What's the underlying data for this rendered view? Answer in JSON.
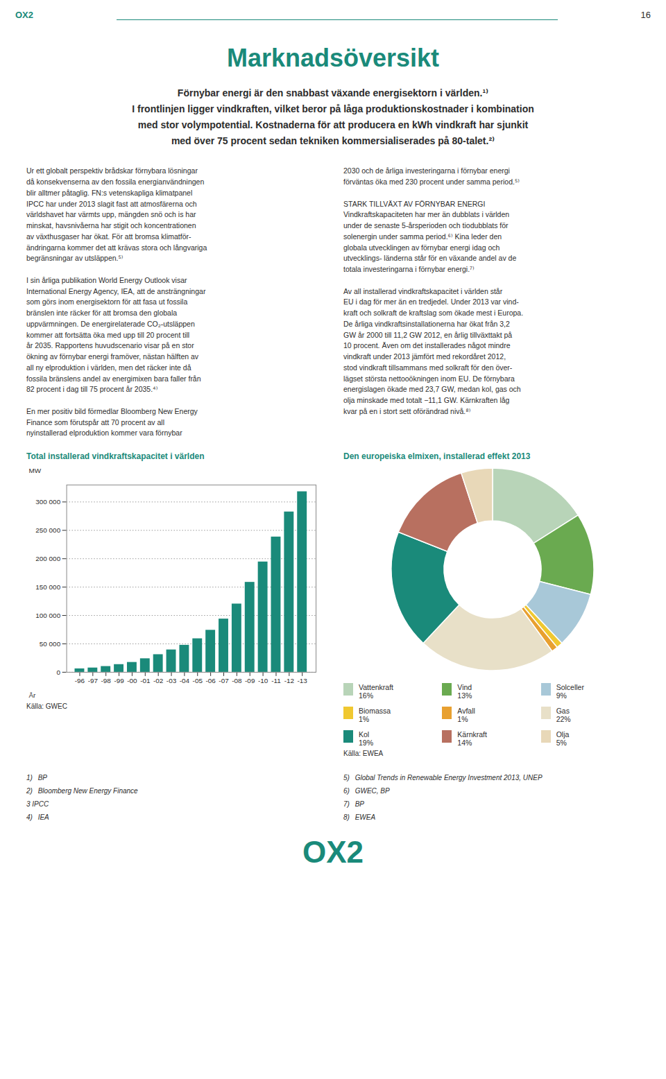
{
  "title": "Marknadsöversikt",
  "subtitle": "Förnybar energi är den snabbast växande energisektorn i världen.¹⁾\nI frontlinjen ligger vindkraften, vilket beror på låga produktionskostnader i kombination\nmed stor volympotential. Kostnaderna för att producera en kWh vindkraft har sjunkit\nmed över 75 procent sedan tekniken kommersialiserades på 80-talet.²⁾",
  "annotations": [
    "OX2",
    "16",
    "Ur ett globalt perspektiv brådskar förnybara lösningar\ndå konsekvenserna av den fossila energianvändningen\nblir alltmer påtaglig. FN:s vetenskapliga klimatpanel\nIPCC har under 2013 slagit fast att atmosfärerna och\nvärldshavet har värmts upp, mängden snö och is har\nminskat, havsnivåerna har stigit och koncentrationen\nav växthusgaser har ökat. För att bromsa klimatför-\nändringarna kommer det att krävas stora och långvariga\nbegränsningar av utsläppen.⁵⁾\n\nI sin årliga publikation World Energy Outlook visar\nInternational Energy Agency, IEA, att de ansträngningar\nsom görs inom energisektorn för att fasa ut fossila\nbränslen inte räcker för att bromsa den globala\nuppvärmningen. De energirelaterade CO₂-utsläppen\nkommer att fortsätta öka med upp till 20 procent till\når 2035. Rapportens huvudscenario visar på en stor\nökning av förnybar energi framöver, nästan hälften av\nall ny elproduktion i världen, men det räcker inte då\nfossila bränslens andel av energimixen bara faller från\n82 procent i dag till 75 procent år 2035.⁴⁾\n\nEn mer positiv bild förmedlar Bloomberg New Energy\nFinance som förutspår att 70 procent av all\nnyinstallerad elproduktion kommer vara förnybar",
    "2030 och de årliga investeringarna i förnybar energi\nförväntas öka med 230 procent under samma period.⁵⁾\n\nSTARK TILLVÄXT AV FÖRNYBAR ENERGI\nVindkraftskapaciteten har mer än dubblats i världen\nunder de senaste 5-årsperioden och tiodubblats för\nsolenergin under samma period.⁶⁾ Kina leder den\nglobala utvecklingen av förnybar energi idag och\nutvecklings- länderna står för en växande andel av de\ntotala investeringarna i förnybar energi.⁷⁾\n\nAv all installerad vindkraftskapacitet i världen står\nEU i dag för mer än en tredjedel. Under 2013 var vind-\nkraft och solkraft de kraftslag som ökade mest i Europa.\nDe årliga vindkraftsinstallationerna har ökat från 3,2\nGW år 2000 till 11,2 GW 2012, en årlig tillväxttakt på\n10 procent. Även om det installerades något mindre\nvindkraft under 2013 jämfört med rekordåret 2012,\nstod vindkraft tillsammans med solkraft för den över-\nlägset största nettooökningen inom EU. De förnybara\nenergislagen ökade med 23,7 GW, medan kol, gas och\nolja minskade med totalt −11,1 GW. Kärnkraften låg\nkvar på en i stort sett oförändrad nivå.⁸⁾",
    "1)\tBP\n2)\tBloomberg New Energy Finance\n3\tIPCC\n4)\tIEA",
    "5)\tGlobal Trends in Renewable Energy Investment 2013, UNEP\n6)\tGWEC, BP\n7)\tBP\n8)\tEWEA",
    "OX2"
  ],
  "chart_data": [
    {
      "type": "bar",
      "title": "Total installerad vindkraftskapacitet i världen",
      "categories": [
        "-96",
        "-97",
        "-98",
        "-99",
        "-00",
        "-01",
        "-02",
        "-03",
        "-04",
        "-05",
        "-06",
        "-07",
        "-08",
        "-09",
        "-10",
        "-11",
        "-12",
        "-13"
      ],
      "values": [
        6100,
        7600,
        10200,
        13600,
        17400,
        23900,
        31100,
        39431,
        47620,
        59091,
        74052,
        93820,
        120297,
        158505,
        194390,
        238351,
        282482,
        318105
      ],
      "color": "#1a8a7a",
      "xlabel": "År",
      "ylabel": "MW",
      "ylim": [
        0,
        330000
      ],
      "yticks": [
        0,
        {
          "value": 50000,
          "label": "50 000"
        },
        {
          "value": 100000,
          "label": "100 000"
        },
        {
          "value": 150000,
          "label": "150 000"
        },
        {
          "value": 200000,
          "label": "200 000"
        },
        {
          "value": 250000,
          "label": "250 000"
        },
        {
          "value": 300000,
          "label": "300 000"
        }
      ],
      "grid": true,
      "annotations": [
        "Källa: GWEC"
      ]
    },
    {
      "type": "pie",
      "title": "Den europeiska elmixen, installerad effekt 2013",
      "categories": [
        "Vattenkraft",
        "Vind",
        "Solceller",
        "Biomassa",
        "Avfall",
        "Gas",
        "Kol",
        "Kärnkraft",
        "Olja"
      ],
      "values": [
        16,
        13,
        9,
        1,
        1,
        22,
        19,
        14,
        5
      ],
      "value_labels": [
        "16%",
        "13%",
        "9%",
        "1%",
        "1%",
        "22%",
        "19%",
        "14%",
        "5%"
      ],
      "colors": [
        "#b8d4b8",
        "#6aaa50",
        "#a8c8d8",
        "#f0c830",
        "#e8a030",
        "#e8e0c8",
        "#1a8a7a",
        "#b87060",
        "#e8d8b8"
      ],
      "legend": "bottom",
      "annotations": [
        "Källa: EWEA"
      ]
    }
  ]
}
